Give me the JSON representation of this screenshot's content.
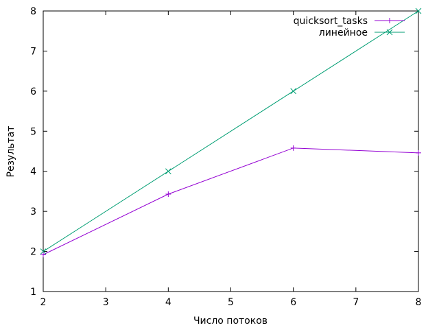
{
  "chart_data": {
    "type": "line",
    "title": "",
    "xlabel": "Число потоков",
    "ylabel": "Результат",
    "xlim": [
      2,
      8
    ],
    "ylim": [
      1,
      8
    ],
    "x_ticks": [
      2,
      3,
      4,
      5,
      6,
      7,
      8
    ],
    "y_ticks": [
      1,
      2,
      3,
      4,
      5,
      6,
      7,
      8
    ],
    "grid": false,
    "legend_position": "top-right",
    "series": [
      {
        "name": "quicksort_tasks",
        "color": "#9400d3",
        "marker": "plus",
        "x": [
          2,
          4,
          6,
          8
        ],
        "y": [
          1.92,
          3.43,
          4.58,
          4.46
        ]
      },
      {
        "name": "линейное",
        "color": "#009e73",
        "marker": "cross",
        "x": [
          2,
          4,
          6,
          8
        ],
        "y": [
          2,
          4,
          6,
          8
        ]
      }
    ]
  }
}
